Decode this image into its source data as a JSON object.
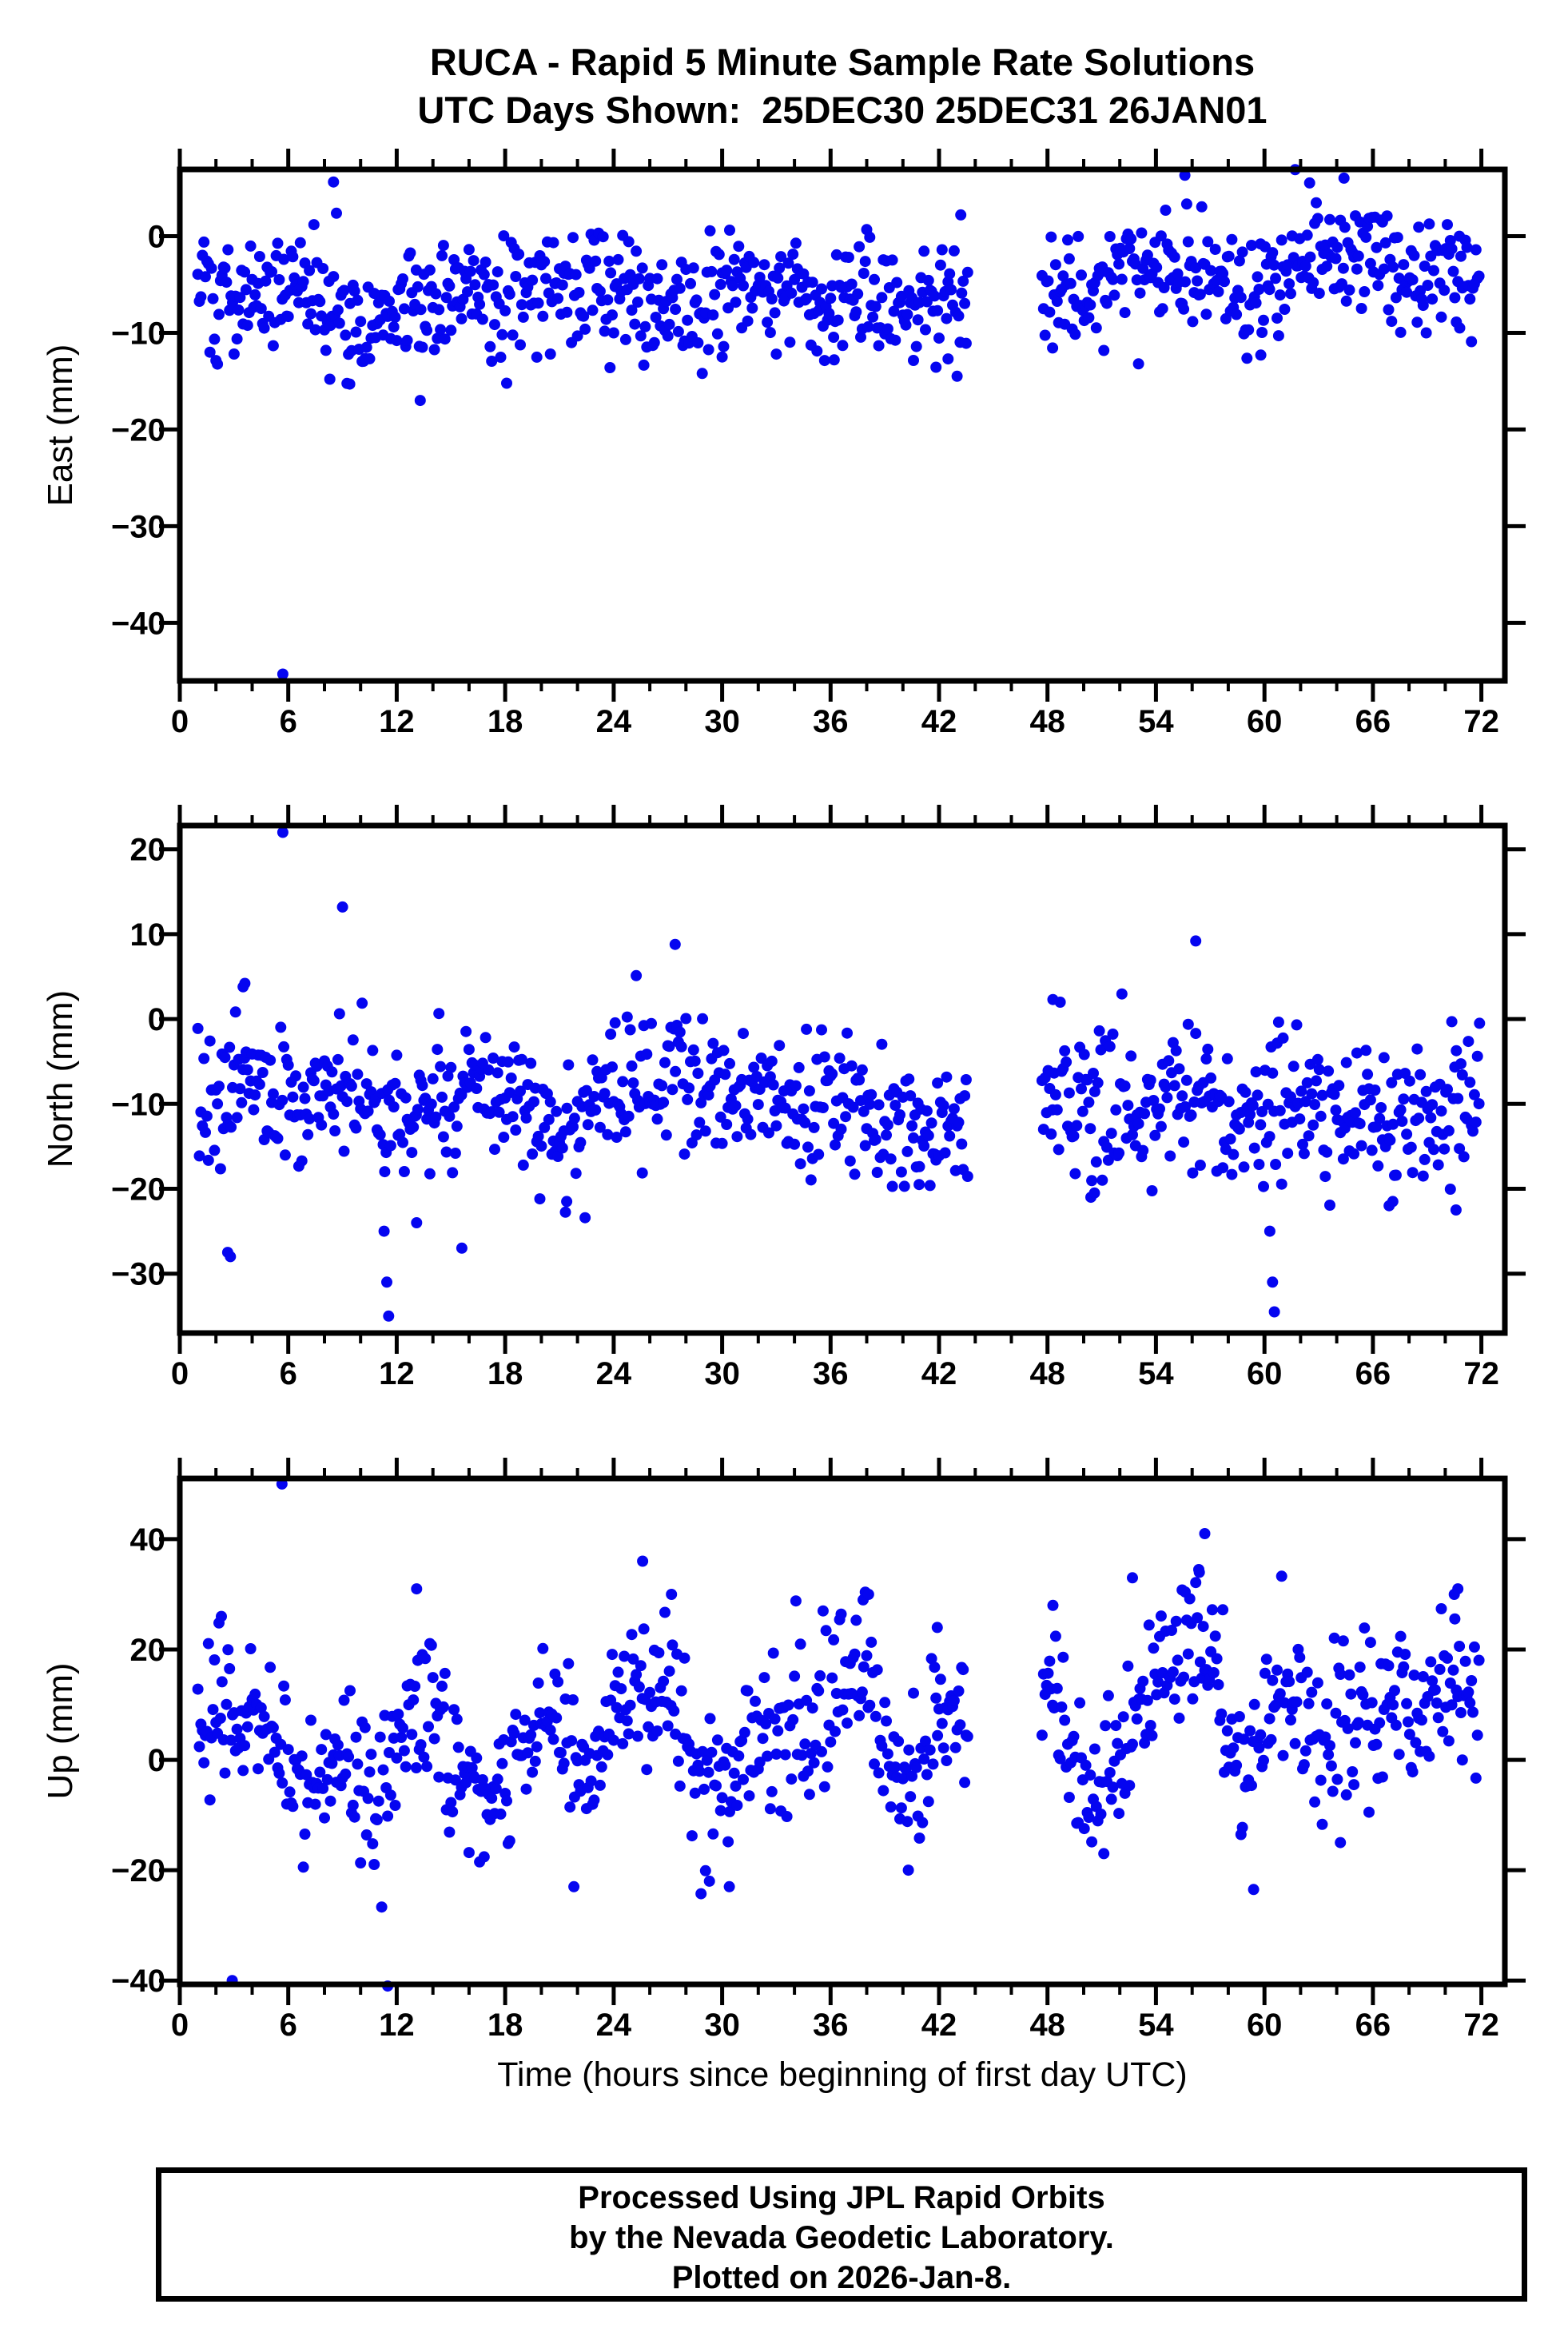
{
  "page": {
    "title_line1": "RUCA - Rapid 5 Minute Sample Rate Solutions",
    "title_line2": "UTC Days Shown:  25DEC30 25DEC31 26JAN01"
  },
  "footer": {
    "lines": [
      "Processed Using JPL Rapid Orbits",
      "by the Nevada Geodetic Laboratory.",
      "Plotted on 2026-Jan-8."
    ]
  },
  "xaxis": {
    "label": "Time (hours since beginning of first day UTC)",
    "min": 0,
    "max": 73.3,
    "major_ticks": [
      0,
      6,
      12,
      18,
      24,
      30,
      36,
      42,
      48,
      54,
      60,
      66,
      72
    ],
    "minor_step": 2,
    "sample_step_hours": 0.0833333,
    "segments": [
      [
        1.0,
        43.6
      ],
      [
        47.7,
        71.9
      ]
    ]
  },
  "style": {
    "marker_color": "#0505F0",
    "frame_color": "#000000",
    "marker_radius": 7
  },
  "chart_data": [
    {
      "type": "scatter",
      "name": "east",
      "ylabel": "East (mm)",
      "ylim": [
        -46.0,
        6.9
      ],
      "yticks": [
        0,
        -10,
        -20,
        -30,
        -40
      ],
      "seed": 101,
      "noise_sd": 3.0,
      "hourly_mean": [
        -2.0,
        -4.5,
        -6.5,
        -7.0,
        -6.0,
        -6.5,
        -5.0,
        -5.5,
        -6.0,
        -8.0,
        -8.5,
        -7.5,
        -7.0,
        -7.5,
        -6.5,
        -6.0,
        -6.5,
        -7.0,
        -6.5,
        -6.0,
        -5.5,
        -5.0,
        -5.5,
        -5.0,
        -4.5,
        -5.0,
        -6.5,
        -7.0,
        -6.5,
        -6.0,
        -5.5,
        -5.0,
        -5.5,
        -6.0,
        -5.5,
        -6.0,
        -6.5,
        -6.0,
        -5.5,
        -6.0,
        -6.5,
        -6.0,
        -6.0,
        -6.5,
        -6.0,
        -6.0,
        -5.5,
        -5.0,
        -5.0,
        -5.5,
        -5.0,
        -5.5,
        -4.5,
        -4.0,
        -3.5,
        -3.0,
        -4.0,
        -4.5,
        -5.0,
        -5.5,
        -4.5,
        -3.0,
        -1.5,
        -1.0,
        -2.0,
        -3.0,
        -2.0,
        -2.5,
        -3.5,
        -4.0,
        -3.0,
        -4.0,
        -3.5
      ],
      "outliers": [
        [
          5.7,
          -45.3
        ],
        [
          8.5,
          5.6
        ],
        [
          8.3,
          -14.8
        ],
        [
          9.4,
          -15.3
        ],
        [
          13.3,
          -17.0
        ],
        [
          23.8,
          -13.6
        ],
        [
          28.9,
          -14.2
        ],
        [
          30.0,
          -12.5
        ],
        [
          36.2,
          -12.8
        ],
        [
          42.5,
          -12.7
        ],
        [
          43.2,
          2.2
        ],
        [
          55.6,
          6.3
        ],
        [
          59.8,
          -12.3
        ],
        [
          62.5,
          5.5
        ],
        [
          64.4,
          6.0
        ],
        [
          70.8,
          -9.5
        ]
      ]
    },
    {
      "type": "scatter",
      "name": "north",
      "ylabel": "North (mm)",
      "ylim": [
        -37.0,
        22.8
      ],
      "yticks": [
        20,
        10,
        0,
        -10,
        -20,
        -30
      ],
      "seed": 202,
      "noise_sd": 4.0,
      "hourly_mean": [
        -5.0,
        -9.0,
        -11.0,
        -9.0,
        -7.0,
        -8.0,
        -8.0,
        -8.5,
        -8.0,
        -7.5,
        -10.0,
        -12.0,
        -11.0,
        -11.0,
        -10.0,
        -10.5,
        -10.0,
        -9.5,
        -10.0,
        -10.5,
        -11.0,
        -12.0,
        -11.5,
        -11.0,
        -9.0,
        -7.5,
        -6.5,
        -6.0,
        -7.0,
        -8.5,
        -9.0,
        -9.5,
        -8.5,
        -9.0,
        -10.0,
        -10.5,
        -10.0,
        -9.5,
        -10.0,
        -11.0,
        -12.0,
        -12.5,
        -12.0,
        -12.0,
        -11.0,
        -10.0,
        -10.0,
        -9.0,
        -8.5,
        -9.5,
        -10.5,
        -10.0,
        -10.5,
        -10.0,
        -9.0,
        -8.5,
        -9.0,
        -10.0,
        -12.0,
        -13.0,
        -12.5,
        -11.0,
        -10.0,
        -10.5,
        -10.0,
        -11.0,
        -12.0,
        -11.5,
        -11.0,
        -10.5,
        -10.0,
        -9.5,
        -9.0
      ],
      "outliers": [
        [
          5.7,
          22.0
        ],
        [
          9.0,
          13.2
        ],
        [
          27.4,
          8.8
        ],
        [
          56.2,
          9.2
        ],
        [
          3.5,
          3.8
        ],
        [
          3.6,
          4.2
        ],
        [
          2.65,
          -27.5
        ],
        [
          2.8,
          -28.0
        ],
        [
          11.3,
          -25.0
        ],
        [
          11.45,
          -31.0
        ],
        [
          11.55,
          -35.0
        ],
        [
          13.1,
          -24.0
        ],
        [
          15.6,
          -27.0
        ],
        [
          21.4,
          -21.5
        ],
        [
          40.9,
          -19.5
        ],
        [
          48.3,
          2.3
        ],
        [
          50.4,
          -21.0
        ],
        [
          50.6,
          -20.5
        ],
        [
          60.3,
          -25.0
        ],
        [
          60.45,
          -31.0
        ],
        [
          60.55,
          -34.5
        ],
        [
          66.9,
          -22.0
        ],
        [
          67.1,
          -21.5
        ],
        [
          70.6,
          -22.5
        ],
        [
          71.9,
          -0.5
        ]
      ]
    },
    {
      "type": "scatter",
      "name": "up",
      "ylabel": "Up (mm)",
      "ylim": [
        -40.7,
        51.0
      ],
      "yticks": [
        40,
        20,
        0,
        -20,
        -40
      ],
      "seed": 303,
      "noise_sd": 6.5,
      "hourly_mean": [
        10,
        12,
        10,
        7,
        5,
        7,
        -1,
        -5,
        -2,
        2,
        -4,
        -7,
        4,
        11,
        7,
        2,
        -4,
        -7,
        -4,
        0,
        5,
        7,
        -3,
        3,
        10,
        16,
        14,
        10,
        4,
        -3,
        -5,
        0,
        2,
        5,
        7,
        5,
        9,
        14,
        17,
        5,
        -4,
        1,
        7,
        3,
        5,
        8,
        10,
        11,
        12,
        5,
        -3,
        -6,
        2,
        9,
        14,
        17,
        21,
        17,
        6,
        -4,
        8,
        14,
        8,
        3,
        7,
        5,
        7,
        11,
        9,
        7,
        13,
        10,
        14
      ],
      "outliers": [
        [
          5.65,
          50.0
        ],
        [
          2.3,
          26.0
        ],
        [
          2.9,
          -40.0
        ],
        [
          11.5,
          -41.0
        ],
        [
          13.1,
          31.0
        ],
        [
          21.8,
          -23.0
        ],
        [
          25.6,
          36.0
        ],
        [
          27.2,
          30.0
        ],
        [
          29.3,
          -22.0
        ],
        [
          30.4,
          -23.0
        ],
        [
          37.8,
          29.0
        ],
        [
          38.1,
          30.0
        ],
        [
          40.3,
          -20.0
        ],
        [
          41.9,
          24.0
        ],
        [
          48.3,
          28.0
        ],
        [
          52.7,
          33.0
        ],
        [
          56.4,
          34.0
        ],
        [
          56.7,
          41.0
        ],
        [
          59.4,
          -23.5
        ],
        [
          64.2,
          -15.0
        ],
        [
          70.5,
          30.0
        ],
        [
          70.7,
          31.0
        ]
      ]
    }
  ]
}
